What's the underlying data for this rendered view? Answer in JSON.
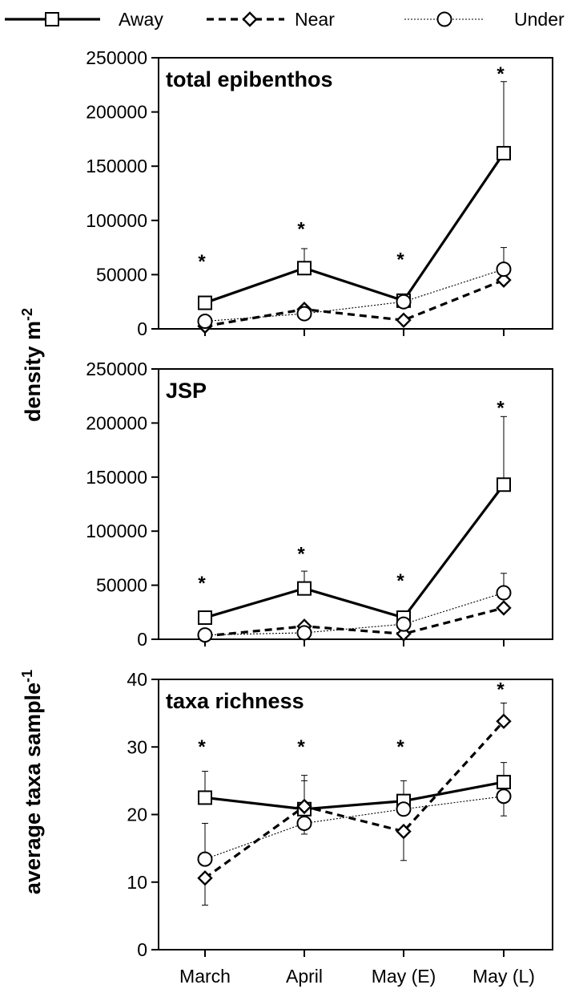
{
  "legend": [
    {
      "key": "away",
      "label": "Away"
    },
    {
      "key": "near",
      "label": "Near"
    },
    {
      "key": "under",
      "label": "Under"
    }
  ],
  "y_labels": {
    "density": {
      "main": "density m",
      "sup": "-2"
    },
    "taxa": {
      "main": "average taxa sample",
      "sup": "-1"
    }
  },
  "chart_data": [
    {
      "type": "line",
      "title": "total epibenthos",
      "categories": [
        "March",
        "April",
        "May (E)",
        "May (L)"
      ],
      "ylim": [
        0,
        250000
      ],
      "yticks": [
        0,
        50000,
        100000,
        150000,
        200000,
        250000
      ],
      "tick_labels": [
        "0",
        "50000",
        "100000",
        "150000",
        "200000",
        "250000"
      ],
      "series": [
        {
          "name": "Away",
          "marker": "square",
          "style": "solid",
          "values": [
            24000,
            56000,
            26000,
            162000
          ],
          "err_upper": [
            null,
            74000,
            null,
            228000
          ]
        },
        {
          "name": "Near",
          "marker": "diamond",
          "style": "dashed",
          "values": [
            2500,
            18000,
            8000,
            45000
          ],
          "err_upper": [
            null,
            null,
            null,
            null
          ]
        },
        {
          "name": "Under",
          "marker": "circle",
          "style": "dotted",
          "values": [
            7000,
            14000,
            25000,
            55000
          ],
          "err_upper": [
            null,
            null,
            null,
            75000
          ]
        }
      ],
      "significance": [
        "*",
        "*",
        "*",
        "*"
      ],
      "significance_y": [
        65000,
        95000,
        67000,
        238000
      ]
    },
    {
      "type": "line",
      "title": "JSP",
      "categories": [
        "March",
        "April",
        "May (E)",
        "May (L)"
      ],
      "ylim": [
        0,
        250000
      ],
      "yticks": [
        0,
        50000,
        100000,
        150000,
        200000,
        250000
      ],
      "tick_labels": [
        "0",
        "50000",
        "100000",
        "150000",
        "200000",
        "250000"
      ],
      "series": [
        {
          "name": "Away",
          "marker": "square",
          "style": "solid",
          "values": [
            20000,
            47000,
            20000,
            143000
          ],
          "err_upper": [
            null,
            63000,
            null,
            206000
          ]
        },
        {
          "name": "Near",
          "marker": "diamond",
          "style": "dashed",
          "values": [
            3000,
            12000,
            5000,
            29000
          ],
          "err_upper": [
            null,
            null,
            null,
            null
          ]
        },
        {
          "name": "Under",
          "marker": "circle",
          "style": "dotted",
          "values": [
            4000,
            6000,
            14000,
            43000
          ],
          "err_upper": [
            null,
            null,
            null,
            61000
          ]
        }
      ],
      "significance": [
        "*",
        "*",
        "*",
        "*"
      ],
      "significance_y": [
        55000,
        82000,
        57000,
        217000
      ]
    },
    {
      "type": "line",
      "title": "taxa richness",
      "categories": [
        "March",
        "April",
        "May (E)",
        "May (L)"
      ],
      "xticks": [
        "March",
        "April",
        "May (E)",
        "May (L)"
      ],
      "ylim": [
        0,
        40
      ],
      "yticks": [
        0,
        10,
        20,
        30,
        40
      ],
      "tick_labels": [
        "0",
        "10",
        "20",
        "30",
        "40"
      ],
      "series": [
        {
          "name": "Away",
          "marker": "square",
          "style": "solid",
          "values": [
            22.5,
            20.8,
            22.0,
            24.8
          ],
          "err_upper": [
            26.4,
            25.8,
            25.0,
            27.7
          ]
        },
        {
          "name": "Near",
          "marker": "diamond",
          "style": "dashed",
          "values": [
            10.6,
            21.2,
            17.5,
            33.8
          ],
          "err_upper": [
            null,
            25.0,
            null,
            36.5
          ],
          "err_lower": [
            6.6,
            null,
            13.2,
            null
          ]
        },
        {
          "name": "Under",
          "marker": "circle",
          "style": "dotted",
          "values": [
            13.4,
            18.7,
            20.8,
            22.7
          ],
          "err_upper": [
            18.7,
            null,
            null,
            null
          ],
          "err_lower": [
            null,
            17.1,
            null,
            19.8
          ]
        }
      ],
      "significance": [
        "*",
        "*",
        "*",
        "*"
      ],
      "significance_y": [
        30.5,
        30.5,
        30.5,
        39.0
      ]
    }
  ]
}
